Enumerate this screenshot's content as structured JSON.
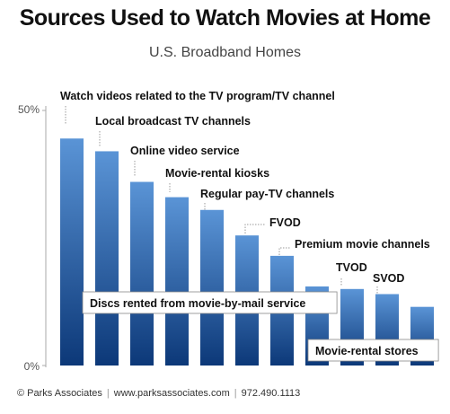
{
  "chart_data": {
    "type": "bar",
    "title": "Sources Used to Watch Movies at Home",
    "subtitle": "U.S. Broadband Homes",
    "xlabel": "",
    "ylabel": "",
    "ylim": [
      0,
      50
    ],
    "yticks": [
      "0%",
      "50%"
    ],
    "grid": false,
    "categories": [
      "Watch videos related to the TV program/TV channel",
      "Local broadcast TV channels",
      "Online video service",
      "Movie-rental kiosks",
      "Regular pay-TV channels",
      "FVOD",
      "Premium movie channels",
      "Discs rented from movie-by-mail service",
      "TVOD",
      "SVOD",
      "Movie-rental stores"
    ],
    "values": [
      44.5,
      42,
      36,
      33,
      30.5,
      25.5,
      21.5,
      15.5,
      15,
      14,
      11.5
    ],
    "colors": {
      "bar_top": "#5a94d6",
      "bar_bottom": "#0c3878",
      "axis": "#aaaaaa"
    }
  },
  "footer": {
    "brand": "© Parks Associates",
    "url": "www.parksassociates.com",
    "phone": "972.490.1113"
  }
}
